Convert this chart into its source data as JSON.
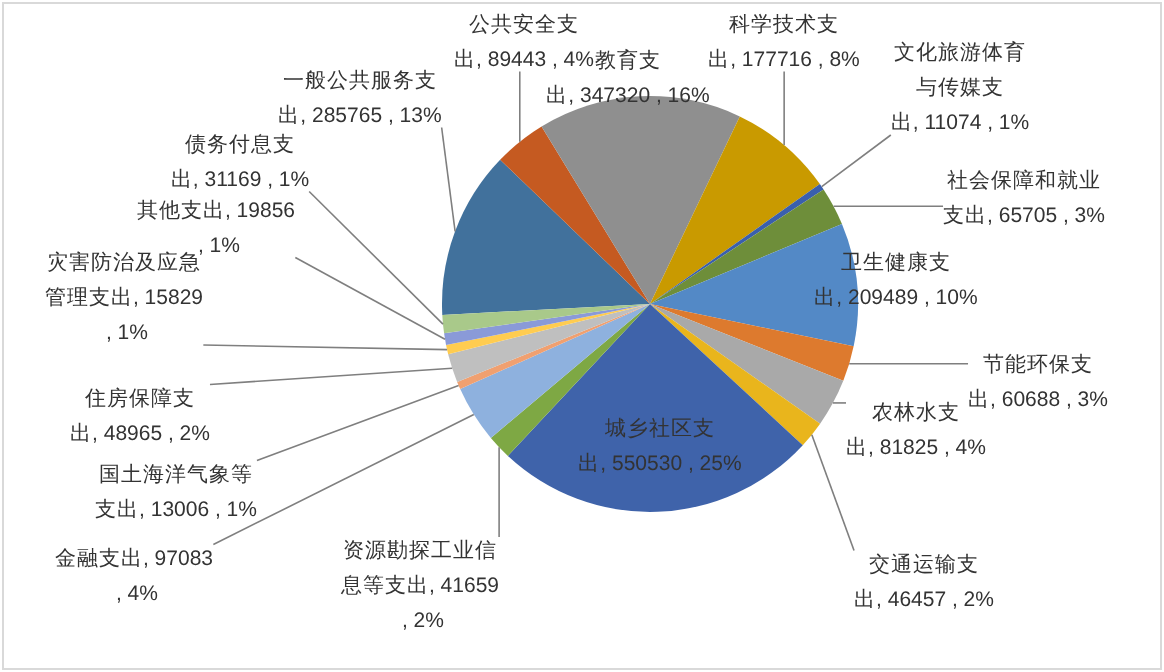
{
  "chart_data": {
    "type": "pie",
    "categories": [
      "一般公共服务支出",
      "公共安全支出",
      "教育支出",
      "科学技术支出",
      "文化旅游体育与传媒支出",
      "社会保障和就业支出",
      "卫生健康支出",
      "节能环保支出",
      "农林水支出",
      "交通运输支出",
      "城乡社区支出",
      "资源勘探工业信息等支出",
      "金融支出",
      "国土海洋气象等支出",
      "住房保障支出",
      "灾害防治及应急管理支出",
      "其他支出",
      "债务付息支出"
    ],
    "values": [
      285765,
      89443,
      347320,
      177716,
      11074,
      65705,
      209489,
      60688,
      81825,
      46457,
      550530,
      41659,
      97083,
      13006,
      48965,
      15829,
      19856,
      31169
    ],
    "colors": [
      "#41719c",
      "#c55a21",
      "#8f8f8f",
      "#c99a00",
      "#3a5fad",
      "#6e8e3a",
      "#5389c6",
      "#dd7a2e",
      "#a9a9a9",
      "#e9b51c",
      "#3f63aa",
      "#7ea844",
      "#8eb1de",
      "#f0a070",
      "#bfbfbf",
      "#ffcc50",
      "#8a9ad8",
      "#a9c98a"
    ],
    "value_labels": [
      "285765 , 13%",
      "89443 , 4%",
      "347320 , 16%",
      "177716 , 8%",
      "11074 , 1%",
      "65705 , 3%",
      "209489 , 10%",
      "60688 , 3%",
      "81825 , 4%",
      "46457 , 2%",
      "550530 , 25%",
      "41659 , 2%",
      "97083 , 4%",
      "13006 , 1%",
      "48965 , 2%",
      "15829 , 1%",
      "19856 , 1%",
      "31169 , 1%"
    ]
  }
}
